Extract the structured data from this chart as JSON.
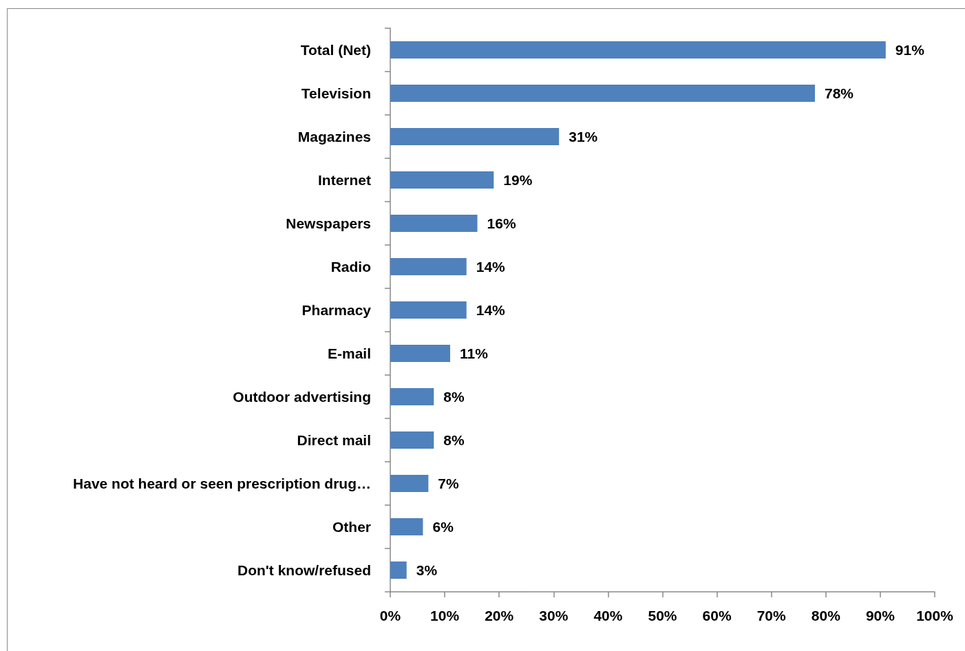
{
  "chart_data": {
    "type": "bar",
    "orientation": "horizontal",
    "categories": [
      "Total (Net)",
      "Television",
      "Magazines",
      "Internet",
      "Newspapers",
      "Radio",
      "Pharmacy",
      "E-mail",
      "Outdoor advertising",
      "Direct mail",
      "Have not heard or seen prescription drug…",
      "Other",
      "Don't know/refused"
    ],
    "values": [
      91,
      78,
      31,
      19,
      16,
      14,
      14,
      11,
      8,
      8,
      7,
      6,
      3
    ],
    "value_labels": [
      "91%",
      "78%",
      "31%",
      "19%",
      "16%",
      "14%",
      "14%",
      "11%",
      "8%",
      "8%",
      "7%",
      "6%",
      "3%"
    ],
    "color": "#4f81bd",
    "xlim": [
      0,
      100
    ],
    "xticks": [
      {
        "value": 0,
        "label": "0%"
      },
      {
        "value": 10,
        "label": "10%"
      },
      {
        "value": 20,
        "label": "20%"
      },
      {
        "value": 30,
        "label": "30%"
      },
      {
        "value": 40,
        "label": "40%"
      },
      {
        "value": 50,
        "label": "50%"
      },
      {
        "value": 60,
        "label": "60%"
      },
      {
        "value": 70,
        "label": "70%"
      },
      {
        "value": 80,
        "label": "80%"
      },
      {
        "value": 90,
        "label": "90%"
      },
      {
        "value": 100,
        "label": "100%"
      }
    ],
    "grid": false
  }
}
